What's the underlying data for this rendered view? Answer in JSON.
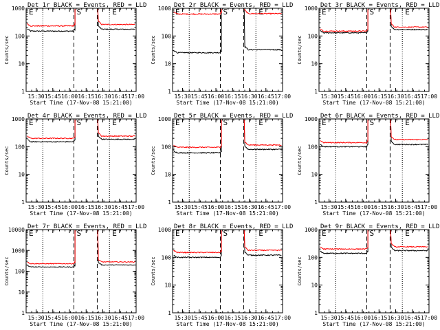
{
  "xlabel": "Start Time (17-Nov-08 15:21:00)",
  "ylabel": "Counts/sec",
  "x_tick_labels": [
    "15:30",
    "15:45",
    "16:00",
    "16:15",
    "16:30",
    "16:45",
    "17:00"
  ],
  "y_tick_labels": [
    "1",
    "10",
    "100",
    "1000"
  ],
  "y_tick_labels_big": [
    "1",
    "10",
    "100",
    "1000",
    "10000"
  ],
  "markers": {
    "E_label": "E",
    "S_label": "S"
  },
  "colors": {
    "events": "#000000",
    "lld": "#ff0000"
  },
  "chart_data": [
    {
      "type": "line",
      "title": "Det 1r BLACK = Events, RED = LLD",
      "xlabel": "Start Time (17-Nov-08 15:21:00)",
      "ylabel": "Counts/sec",
      "xlim": [
        "15:21",
        "17:00"
      ],
      "ylim": [
        1,
        1000
      ],
      "yscale": "log",
      "dashed_lines": [
        "16:04",
        "16:25"
      ],
      "dotted_lines": [
        "15:36",
        "16:36"
      ],
      "series": [
        {
          "name": "Events",
          "color": "#000000",
          "before": 150,
          "after": 175
        },
        {
          "name": "LLD",
          "color": "#ff0000",
          "before": 230,
          "after": 260
        }
      ]
    },
    {
      "type": "line",
      "title": "Det 2r BLACK = Events, RED = LLD",
      "xlabel": "Start Time (17-Nov-08 15:21:00)",
      "ylabel": "Counts/sec",
      "xlim": [
        "15:21",
        "17:00"
      ],
      "ylim": [
        1,
        1000
      ],
      "yscale": "log",
      "dashed_lines": [
        "16:04",
        "16:25"
      ],
      "dotted_lines": [
        "15:36",
        "16:36"
      ],
      "series": [
        {
          "name": "Events",
          "color": "#000000",
          "before": 25,
          "after": 32
        },
        {
          "name": "LLD",
          "color": "#ff0000",
          "before": 620,
          "after": 640
        }
      ]
    },
    {
      "type": "line",
      "title": "Det 3r BLACK = Events, RED = LLD",
      "xlabel": "Start Time (17-Nov-08 15:21:00)",
      "ylabel": "Counts/sec",
      "xlim": [
        "15:21",
        "17:00"
      ],
      "ylim": [
        1,
        1000
      ],
      "yscale": "log",
      "dashed_lines": [
        "16:04",
        "16:25"
      ],
      "dotted_lines": [
        "15:36",
        "16:36"
      ],
      "series": [
        {
          "name": "Events",
          "color": "#000000",
          "before": 130,
          "after": 170
        },
        {
          "name": "LLD",
          "color": "#ff0000",
          "before": 150,
          "after": 210
        }
      ]
    },
    {
      "type": "line",
      "title": "Det 4r BLACK = Events, RED = LLD",
      "xlabel": "Start Time (17-Nov-08 15:21:00)",
      "ylabel": "Counts/sec",
      "xlim": [
        "15:21",
        "17:00"
      ],
      "ylim": [
        1,
        1000
      ],
      "yscale": "log",
      "dashed_lines": [
        "16:04",
        "16:25"
      ],
      "dotted_lines": [
        "15:36",
        "16:36"
      ],
      "series": [
        {
          "name": "Events",
          "color": "#000000",
          "before": 150,
          "after": 185
        },
        {
          "name": "LLD",
          "color": "#ff0000",
          "before": 200,
          "after": 240
        }
      ]
    },
    {
      "type": "line",
      "title": "Det 5r BLACK = Events, RED = LLD",
      "xlabel": "Start Time (17-Nov-08 15:21:00)",
      "ylabel": "Counts/sec",
      "xlim": [
        "15:21",
        "17:00"
      ],
      "ylim": [
        1,
        1000
      ],
      "yscale": "log",
      "dashed_lines": [
        "16:04",
        "16:25"
      ],
      "dotted_lines": [
        "15:36",
        "16:36"
      ],
      "series": [
        {
          "name": "Events",
          "color": "#000000",
          "before": 60,
          "after": 80
        },
        {
          "name": "LLD",
          "color": "#ff0000",
          "before": 95,
          "after": 115
        }
      ]
    },
    {
      "type": "line",
      "title": "Det 6r BLACK = Events, RED = LLD",
      "xlabel": "Start Time (17-Nov-08 15:21:00)",
      "ylabel": "Counts/sec",
      "xlim": [
        "15:21",
        "17:00"
      ],
      "ylim": [
        1,
        1000
      ],
      "yscale": "log",
      "dashed_lines": [
        "16:04",
        "16:25"
      ],
      "dotted_lines": [
        "15:36",
        "16:36"
      ],
      "series": [
        {
          "name": "Events",
          "color": "#000000",
          "before": 100,
          "after": 120
        },
        {
          "name": "LLD",
          "color": "#ff0000",
          "before": 140,
          "after": 180
        }
      ]
    },
    {
      "type": "line",
      "title": "Det 7r BLACK = Events, RED = LLD",
      "xlabel": "Start Time (17-Nov-08 15:21:00)",
      "ylabel": "Counts/sec",
      "xlim": [
        "15:21",
        "17:00"
      ],
      "ylim": [
        1,
        10000
      ],
      "yscale": "log",
      "dashed_lines": [
        "16:04",
        "16:25"
      ],
      "dotted_lines": [
        "15:36",
        "16:36"
      ],
      "series": [
        {
          "name": "Events",
          "color": "#000000",
          "before": 160,
          "after": 200
        },
        {
          "name": "LLD",
          "color": "#ff0000",
          "before": 230,
          "after": 280
        }
      ]
    },
    {
      "type": "line",
      "title": "Det 8r BLACK = Events, RED = LLD",
      "xlabel": "Start Time (17-Nov-08 15:21:00)",
      "ylabel": "Counts/sec",
      "xlim": [
        "15:21",
        "17:00"
      ],
      "ylim": [
        1,
        1000
      ],
      "yscale": "log",
      "dashed_lines": [
        "16:04",
        "16:25"
      ],
      "dotted_lines": [
        "15:36",
        "16:36"
      ],
      "series": [
        {
          "name": "Events",
          "color": "#000000",
          "before": 100,
          "after": 120
        },
        {
          "name": "LLD",
          "color": "#ff0000",
          "before": 150,
          "after": 180
        }
      ]
    },
    {
      "type": "line",
      "title": "Det 9r BLACK = Events, RED = LLD",
      "xlabel": "Start Time (17-Nov-08 15:21:00)",
      "ylabel": "Counts/sec",
      "xlim": [
        "15:21",
        "17:00"
      ],
      "ylim": [
        1,
        1000
      ],
      "yscale": "log",
      "dashed_lines": [
        "16:04",
        "16:25"
      ],
      "dotted_lines": [
        "15:36",
        "16:36"
      ],
      "series": [
        {
          "name": "Events",
          "color": "#000000",
          "before": 140,
          "after": 175
        },
        {
          "name": "LLD",
          "color": "#ff0000",
          "before": 200,
          "after": 240
        }
      ]
    }
  ]
}
